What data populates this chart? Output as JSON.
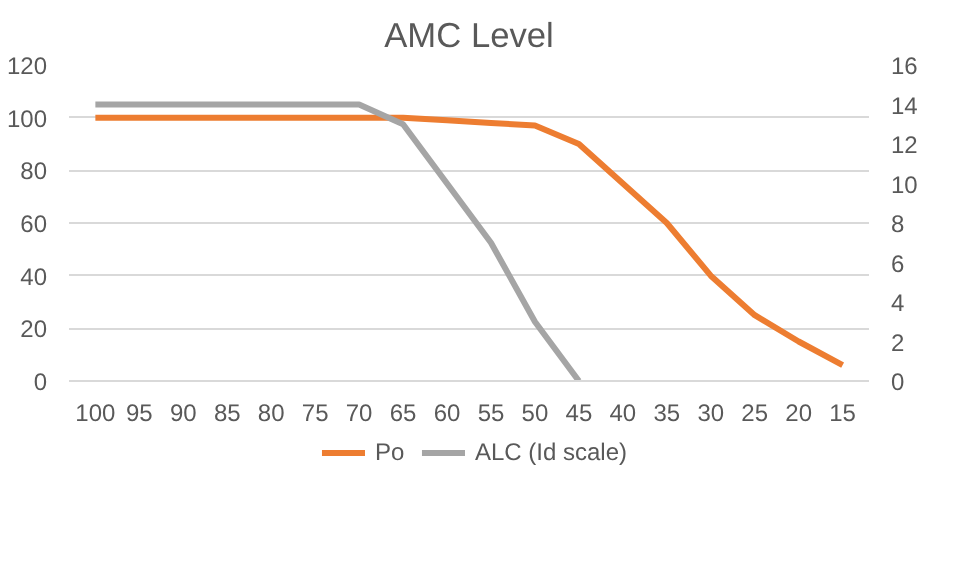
{
  "chart_data": {
    "type": "line",
    "title": "AMC Level",
    "categories": [
      "100",
      "95",
      "90",
      "85",
      "80",
      "75",
      "70",
      "65",
      "60",
      "55",
      "50",
      "45",
      "40",
      "35",
      "30",
      "25",
      "20",
      "15"
    ],
    "series": [
      {
        "name": "Po",
        "color": "#ed7d31",
        "values": [
          100,
          100,
          100,
          100,
          100,
          100,
          100,
          100,
          99,
          98,
          97,
          90,
          75,
          60,
          40,
          25,
          15,
          6
        ]
      },
      {
        "name": "ALC (Id scale)",
        "color": "#a5a5a5",
        "axis": "y2",
        "values": [
          14,
          14,
          14,
          14,
          14,
          14,
          14,
          13,
          10,
          7,
          3,
          0,
          null,
          null,
          null,
          null,
          null,
          null
        ]
      }
    ],
    "ylim": [
      0,
      120
    ],
    "yticks": [
      0,
      20,
      40,
      60,
      80,
      100,
      120
    ],
    "y2lim": [
      0,
      16
    ],
    "y2ticks": [
      0,
      2,
      4,
      6,
      8,
      10,
      12,
      14,
      16
    ],
    "grid": "y",
    "legend": "bottom",
    "marker": "none",
    "line_style": "solid"
  }
}
